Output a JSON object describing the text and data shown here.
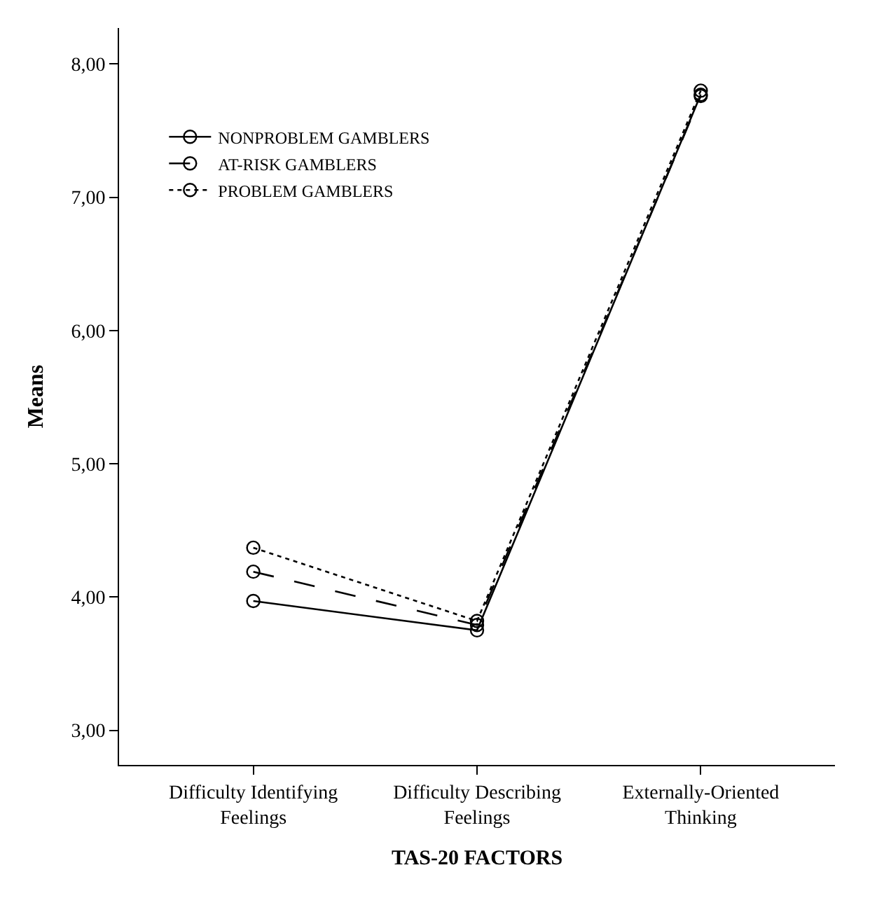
{
  "chart_data": {
    "type": "line",
    "xlabel": "TAS-20 FACTORS",
    "ylabel": "Means",
    "categories": [
      "Difficulty Identifying Feelings",
      "Difficulty Describing Feelings",
      "Externally-Oriented Thinking"
    ],
    "series": [
      {
        "name": "NONPROBLEM GAMBLERS",
        "color": "#000000",
        "line_style": "solid",
        "values": [
          3.97,
          3.75,
          7.77
        ]
      },
      {
        "name": "AT-RISK GAMBLERS",
        "color": "#000000",
        "line_style": "dashed",
        "values": [
          4.19,
          3.79,
          7.76
        ]
      },
      {
        "name": "PROBLEM GAMBLERS",
        "color": "#000000",
        "line_style": "dotted",
        "values": [
          4.37,
          3.82,
          7.8
        ]
      }
    ],
    "ylim": [
      2.74,
      8.27
    ],
    "yticks": [
      {
        "value": 3,
        "label": "3,00"
      },
      {
        "value": 4,
        "label": "4,00"
      },
      {
        "value": 5,
        "label": "5,00"
      },
      {
        "value": 6,
        "label": "6,00"
      },
      {
        "value": 7,
        "label": "7,00"
      },
      {
        "value": 8,
        "label": "8,00"
      }
    ],
    "legend": "top left",
    "marker": "circle"
  }
}
